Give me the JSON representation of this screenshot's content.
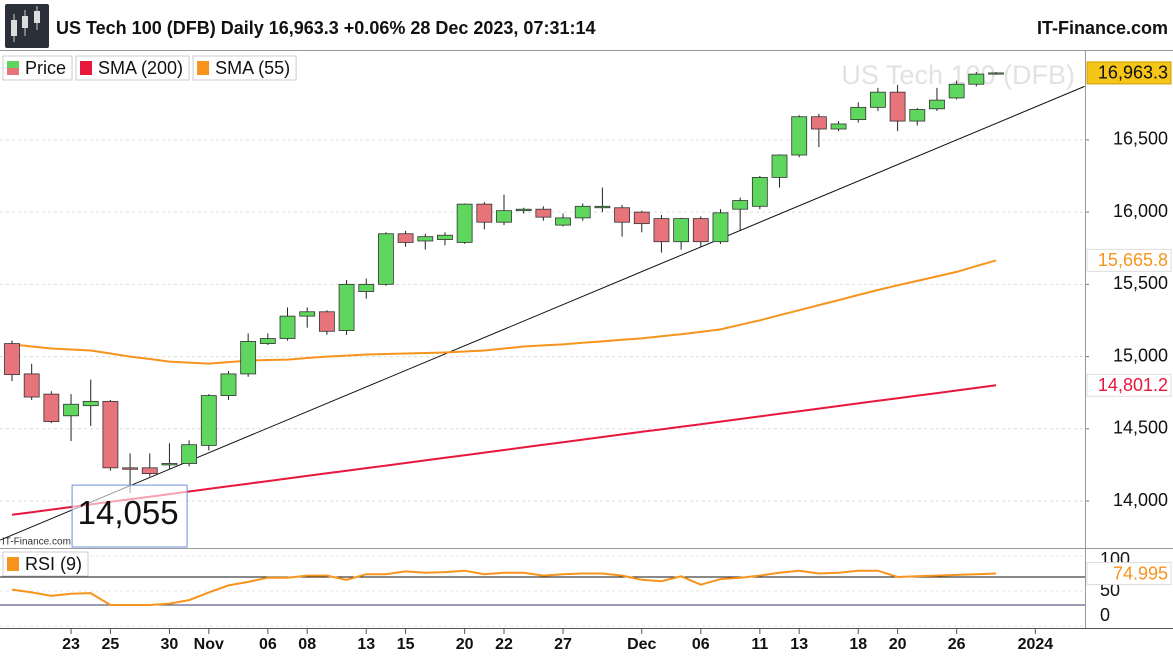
{
  "header": {
    "title": "US Tech 100 (DFB) Daily 16,963.3 +0.06% 28 Dec 2023, 07:31:14",
    "brand": "IT-Finance.com"
  },
  "chart_data": [
    {
      "type": "candlestick",
      "watermark": "US Tech 100 (DFB)",
      "source": "IT-Finance.com",
      "name": "Price",
      "categories": [
        null,
        null,
        null,
        "23",
        null,
        "25",
        null,
        null,
        "30",
        null,
        "Nov",
        null,
        null,
        "06",
        null,
        "08",
        null,
        null,
        "13",
        null,
        "15",
        null,
        null,
        "20",
        null,
        "22",
        null,
        null,
        "27",
        null,
        null,
        null,
        "Dec",
        null,
        null,
        "06",
        null,
        null,
        "11",
        null,
        "13",
        null,
        null,
        "18",
        null,
        "20",
        null,
        null,
        "26",
        null,
        null,
        null,
        "2024"
      ],
      "open": [
        15090,
        14880,
        14740,
        14590,
        14660,
        14690,
        14230,
        14230,
        14250,
        14260,
        14385,
        14730,
        14880,
        15090,
        15125,
        15280,
        15310,
        15180,
        15450,
        15500,
        15850,
        15800,
        15810,
        15790,
        16055,
        15930,
        16010,
        16020,
        15910,
        15960,
        16030,
        16030,
        16000,
        15955,
        15795,
        15955,
        15795,
        16020,
        16040,
        16240,
        16395,
        16660,
        16575,
        16640,
        16725,
        16830,
        16630,
        16715,
        16790,
        16885,
        16955,
        null,
        null
      ],
      "high": [
        15110,
        14950,
        14760,
        14740,
        14840,
        14700,
        14330,
        14330,
        14400,
        14420,
        14740,
        14900,
        15160,
        15160,
        15340,
        15340,
        15320,
        15530,
        15540,
        15860,
        15870,
        15850,
        15860,
        16060,
        16070,
        16120,
        16030,
        16040,
        15990,
        16060,
        16170,
        16050,
        16010,
        15980,
        15960,
        15970,
        16020,
        16100,
        16250,
        16400,
        16670,
        16680,
        16630,
        16760,
        16860,
        16880,
        16720,
        16860,
        16910,
        16970,
        16970,
        null,
        null
      ],
      "low": [
        14830,
        14700,
        14540,
        14415,
        14520,
        14210,
        14055,
        14170,
        14220,
        14240,
        14350,
        14700,
        14860,
        15080,
        15110,
        15200,
        15150,
        15150,
        15400,
        15490,
        15760,
        15740,
        15770,
        15780,
        15880,
        15910,
        15990,
        15940,
        15900,
        15940,
        16000,
        15830,
        15860,
        15720,
        15740,
        15760,
        15780,
        15870,
        16020,
        16170,
        16380,
        16450,
        16560,
        16620,
        16700,
        16560,
        16600,
        16700,
        16780,
        16870,
        16950,
        null,
        null
      ],
      "close": [
        14875,
        14720,
        14550,
        14670,
        14690,
        14230,
        14220,
        14190,
        14260,
        14390,
        14730,
        14880,
        15105,
        15125,
        15280,
        15310,
        15175,
        15500,
        15500,
        15850,
        15790,
        15830,
        15840,
        16055,
        15930,
        16010,
        16020,
        15965,
        15960,
        16040,
        16040,
        15930,
        15920,
        15795,
        15955,
        15795,
        15995,
        16080,
        16240,
        16395,
        16660,
        16575,
        16610,
        16725,
        16830,
        16630,
        16710,
        16775,
        16885,
        16955,
        16963.3,
        null,
        null
      ],
      "up_color": "#5fd75f",
      "down_color": "#e8747b",
      "last_label": "16,963.3",
      "series": [
        {
          "name": "SMA (200)",
          "color": "#e8173c",
          "last_label": "14,801.2",
          "values": [
            13905,
            13923,
            13941,
            13959,
            13977,
            13995,
            14013,
            14030,
            14048,
            14066,
            14084,
            14102,
            14120,
            14138,
            14156,
            14174,
            14192,
            14210,
            14228,
            14245,
            14263,
            14281,
            14299,
            14317,
            14335,
            14353,
            14371,
            14389,
            14407,
            14425,
            14443,
            14461,
            14479,
            14496,
            14514,
            14532,
            14550,
            14568,
            14586,
            14604,
            14622,
            14640,
            14658,
            14676,
            14694,
            14712,
            14730,
            14747,
            14765,
            14783,
            14801.2,
            null,
            null
          ]
        },
        {
          "name": "SMA (55)",
          "color": "#f7941d",
          "last_label": "15,665.8",
          "values": [
            15084,
            15070,
            15056,
            15049,
            15042,
            15021,
            15000,
            14983,
            14965,
            14958,
            14951,
            14962,
            14972,
            14976,
            14979,
            14990,
            15000,
            15007,
            15014,
            15018,
            15021,
            15025,
            15028,
            15035,
            15042,
            15056,
            15070,
            15077,
            15084,
            15095,
            15105,
            15116,
            15126,
            15140,
            15154,
            15171,
            15188,
            15220,
            15251,
            15286,
            15321,
            15356,
            15391,
            15426,
            15461,
            15493,
            15524,
            15555,
            15586,
            15626,
            15665.8,
            null,
            null
          ]
        }
      ],
      "trendline": {
        "x": [
          -0.6,
          54.5
        ],
        "values": [
          13730,
          16870
        ]
      },
      "annotation": {
        "value": 14055,
        "label": "14,055"
      },
      "ylim": [
        13675,
        17115
      ],
      "yticks": [
        {
          "value": 14000,
          "label": "14,000"
        },
        {
          "value": 14500,
          "label": "14,500"
        },
        {
          "value": 15000,
          "label": "15,000"
        },
        {
          "value": 15500,
          "label": "15,500"
        },
        {
          "value": 16000,
          "label": "16,000"
        },
        {
          "value": 16500,
          "label": "16,500"
        }
      ],
      "grid": true
    },
    {
      "type": "line",
      "series": [
        {
          "name": "RSI (9)",
          "color": "#f7941d",
          "last_label": "74.995",
          "values": [
            52,
            48,
            43,
            46,
            47,
            30,
            30,
            30,
            32,
            37,
            48,
            58,
            63,
            69,
            69,
            72,
            72,
            66,
            74,
            74,
            78,
            76,
            77,
            79,
            74,
            76,
            76,
            72,
            74,
            75,
            75,
            72,
            66,
            64,
            71,
            59,
            67,
            69,
            72,
            76,
            79,
            75,
            76,
            79,
            79,
            70,
            71,
            72,
            73,
            74,
            74.995,
            null,
            null
          ]
        }
      ],
      "levels": [
        30,
        70
      ],
      "ylim": [
        0,
        100
      ],
      "yticks": [
        0,
        50,
        100
      ]
    }
  ]
}
